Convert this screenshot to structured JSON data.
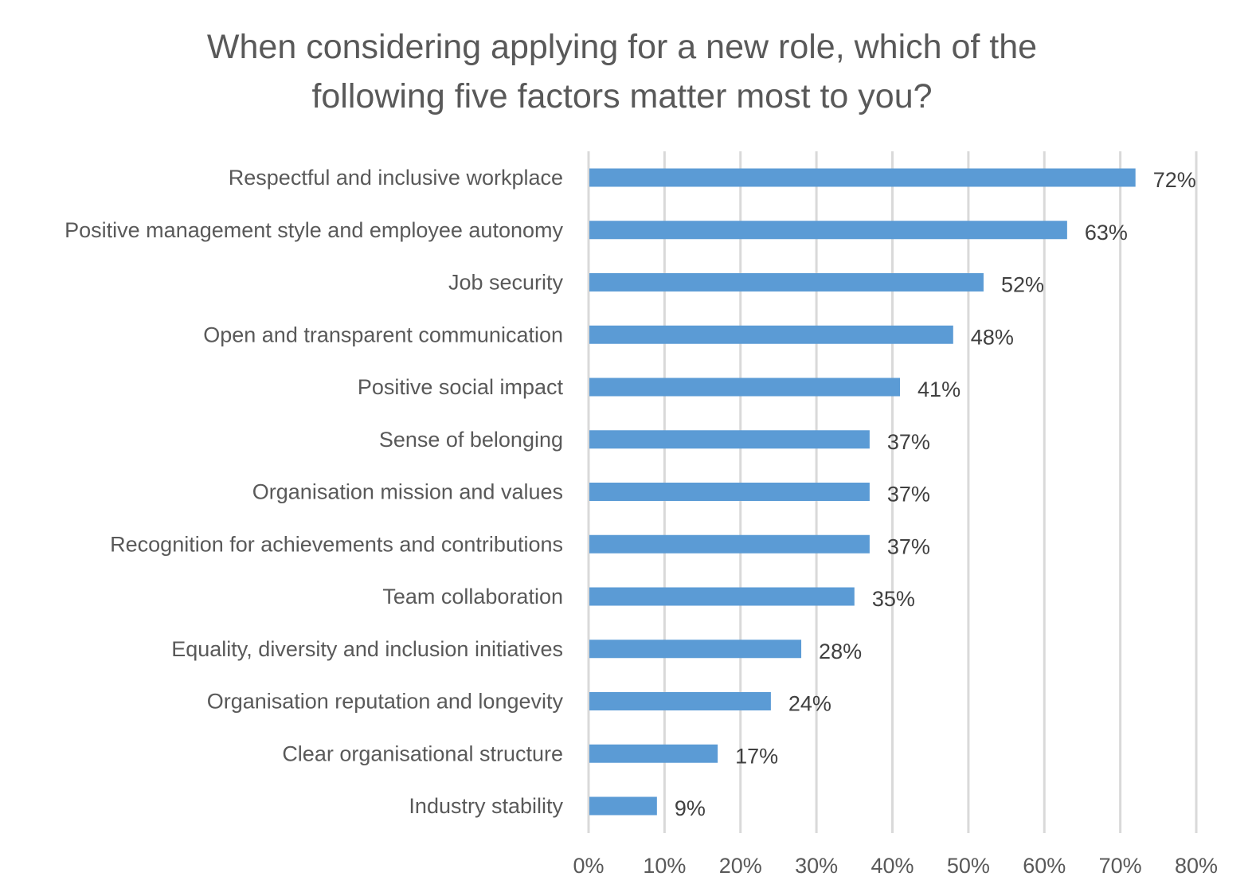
{
  "chart_data": {
    "type": "bar",
    "orientation": "horizontal",
    "title": "When considering applying for a new role, which of the following five factors matter most to you?",
    "title_lines": [
      "When considering applying for a new role, which of the",
      "following five factors matter most to you?"
    ],
    "categories": [
      "Respectful and inclusive workplace",
      "Positive management style and employee autonomy",
      "Job security",
      "Open and transparent communication",
      "Positive social impact",
      "Sense of belonging",
      "Organisation mission and values",
      "Recognition for achievements and contributions",
      "Team collaboration",
      "Equality, diversity and inclusion initiatives",
      "Organisation reputation and longevity",
      "Clear organisational structure",
      "Industry stability"
    ],
    "values": [
      72,
      63,
      52,
      48,
      41,
      37,
      37,
      37,
      35,
      28,
      24,
      17,
      9
    ],
    "data_labels": [
      "72%",
      "63%",
      "52%",
      "48%",
      "41%",
      "37%",
      "37%",
      "37%",
      "35%",
      "28%",
      "24%",
      "17%",
      "9%"
    ],
    "xlim": [
      0,
      80
    ],
    "x_ticks": [
      "0%",
      "10%",
      "20%",
      "30%",
      "40%",
      "50%",
      "60%",
      "70%",
      "80%"
    ],
    "xlabel": "",
    "ylabel": "",
    "grid": "vertical",
    "legend": "none",
    "bar_color": "#5B9BD5",
    "grid_color": "#D9D9D9"
  }
}
